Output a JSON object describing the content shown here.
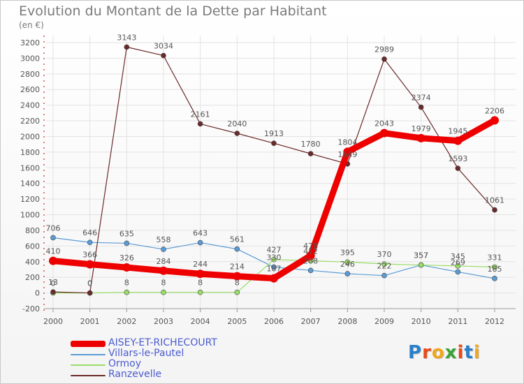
{
  "title": "Evolution du Montant de la Dette par Habitant",
  "subtitle": "(en €)",
  "logo_text": "Proxiti",
  "chart_data": {
    "type": "line",
    "title": "Evolution du Montant de la Dette par Habitant",
    "subtitle": "(en €)",
    "xlabel": "",
    "ylabel": "",
    "categories": [
      "2000",
      "2001",
      "2002",
      "2003",
      "2004",
      "2005",
      "2006",
      "2007",
      "2008",
      "2009",
      "2010",
      "2011",
      "2012"
    ],
    "ylim": [
      -200,
      3200
    ],
    "yticks": [
      -200,
      0,
      200,
      400,
      600,
      800,
      1000,
      1200,
      1400,
      1600,
      1800,
      2000,
      2200,
      2400,
      2600,
      2800,
      3000,
      3200
    ],
    "grid": true,
    "legend_position": "bottom-left",
    "series": [
      {
        "name": "AISEY-ET-RICHECOURT",
        "color": "#ee0000",
        "emphasis": true,
        "values": [
          410,
          366,
          326,
          284,
          244,
          214,
          187,
          478,
          1804,
          2043,
          1979,
          1945,
          2206
        ],
        "labels": [
          "410",
          "366",
          "326",
          "284",
          "244",
          "214",
          "",
          "",
          "1804",
          "2043",
          "1979",
          "1945",
          "2206"
        ]
      },
      {
        "name": "Villars-le-Pautel",
        "color": "#5b9bd5",
        "values": [
          706,
          646,
          635,
          558,
          643,
          561,
          330,
          288,
          246,
          222,
          357,
          269,
          185
        ],
        "labels": [
          "706",
          "646",
          "635",
          "558",
          "643",
          "561",
          "330",
          "288",
          "246",
          "222",
          "357",
          "269",
          "185"
        ]
      },
      {
        "name": "Ormoy",
        "color": "#99dd66",
        "values": [
          0,
          0,
          8,
          8,
          8,
          8,
          427,
          412,
          395,
          370,
          357,
          345,
          331
        ],
        "labels": [
          "0",
          "0",
          "8",
          "8",
          "8",
          "8",
          "427",
          "412",
          "395",
          "370",
          "357",
          "345",
          "331"
        ]
      },
      {
        "name": "Ranzevelle",
        "color": "#6b2a2a",
        "values": [
          13,
          0,
          3143,
          3034,
          2161,
          2040,
          1913,
          1780,
          1649,
          2989,
          2374,
          1593,
          1061
        ],
        "labels": [
          "13",
          "0",
          "3143",
          "3034",
          "2161",
          "2040",
          "1913",
          "1780",
          "1649",
          "2989",
          "2374",
          "1593",
          "1061"
        ]
      }
    ],
    "extra_labels": [
      {
        "series": 0,
        "index": 6,
        "text": "187"
      },
      {
        "series": 0,
        "index": 7,
        "text": "478"
      }
    ]
  }
}
